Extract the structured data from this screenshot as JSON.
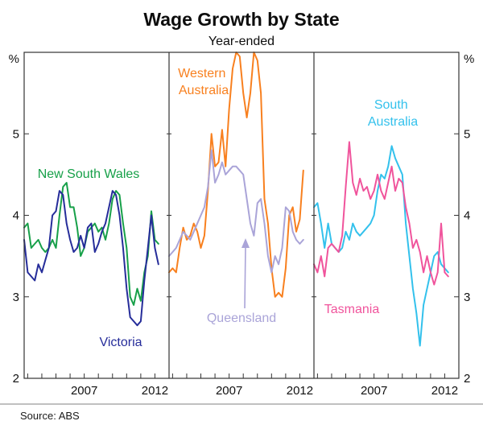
{
  "chart_data": {
    "type": "line",
    "title": "Wage Growth by State",
    "subtitle": "Year-ended",
    "unit": "%",
    "source": "Source: ABS",
    "ylim": [
      2,
      6
    ],
    "ytick_labels": [
      5,
      4,
      3,
      2
    ],
    "ytick_marks": [
      3,
      4,
      5
    ],
    "x_domain": [
      2002.75,
      2013.0
    ],
    "xticks": [
      2007,
      2012
    ],
    "grid": false,
    "legend": "in-panel colored text labels",
    "panels": [
      {
        "series": [
          {
            "name": "New South Wales",
            "label_lines": [
              "New South Wales"
            ],
            "color": "#17a049",
            "x_start": 2002.75,
            "x_step": 0.25,
            "values": [
              3.85,
              3.9,
              3.6,
              3.65,
              3.7,
              3.6,
              3.55,
              3.6,
              3.7,
              3.6,
              4.0,
              4.35,
              4.4,
              4.1,
              4.1,
              3.85,
              3.5,
              3.6,
              3.8,
              3.85,
              3.9,
              3.8,
              3.85,
              3.7,
              3.9,
              4.2,
              4.3,
              4.25,
              3.9,
              3.6,
              3.0,
              2.9,
              3.1,
              2.95,
              3.3,
              3.5,
              4.05,
              3.7,
              3.65
            ]
          },
          {
            "name": "Victoria",
            "label_lines": [
              "Victoria"
            ],
            "color": "#262d9a",
            "x_start": 2002.75,
            "x_step": 0.25,
            "values": [
              3.7,
              3.3,
              3.25,
              3.2,
              3.4,
              3.3,
              3.45,
              3.6,
              4.0,
              4.05,
              4.3,
              4.25,
              3.9,
              3.7,
              3.55,
              3.6,
              3.75,
              3.6,
              3.85,
              3.9,
              3.55,
              3.65,
              3.8,
              3.9,
              4.1,
              4.3,
              4.25,
              4.0,
              3.6,
              3.1,
              2.75,
              2.7,
              2.65,
              2.7,
              3.2,
              3.6,
              4.0,
              3.6,
              3.4
            ]
          }
        ]
      },
      {
        "series": [
          {
            "name": "Western Australia",
            "label_lines": [
              "Western",
              "Australia"
            ],
            "color": "#f8801f",
            "x_start": 2002.75,
            "x_step": 0.25,
            "values": [
              3.3,
              3.35,
              3.3,
              3.6,
              3.85,
              3.7,
              3.75,
              3.9,
              3.8,
              3.6,
              3.75,
              4.3,
              5.0,
              4.6,
              4.65,
              5.05,
              4.6,
              5.3,
              5.8,
              6.0,
              5.95,
              5.5,
              5.2,
              5.5,
              6.0,
              5.9,
              5.5,
              4.2,
              3.9,
              3.35,
              3.0,
              3.05,
              3.0,
              3.35,
              4.0,
              4.1,
              3.8,
              3.95,
              4.55
            ]
          },
          {
            "name": "Queensland",
            "label_lines": [
              "Queensland"
            ],
            "color": "#aaa4d8",
            "x_start": 2002.75,
            "x_step": 0.25,
            "values": [
              3.5,
              3.55,
              3.6,
              3.7,
              3.8,
              3.75,
              3.7,
              3.8,
              3.9,
              4.0,
              4.1,
              4.35,
              4.8,
              4.4,
              4.5,
              4.65,
              4.5,
              4.55,
              4.6,
              4.6,
              4.55,
              4.5,
              4.2,
              3.9,
              3.75,
              4.15,
              4.2,
              3.9,
              3.5,
              3.3,
              3.5,
              3.4,
              3.6,
              4.1,
              4.05,
              3.8,
              3.7,
              3.65,
              3.7
            ]
          }
        ]
      },
      {
        "series": [
          {
            "name": "South Australia",
            "label_lines": [
              "South",
              "Australia"
            ],
            "color": "#33c1ec",
            "x_start": 2002.75,
            "x_step": 0.25,
            "values": [
              4.1,
              4.15,
              3.9,
              3.6,
              3.9,
              3.65,
              3.6,
              3.55,
              3.6,
              3.8,
              3.7,
              3.9,
              3.8,
              3.75,
              3.8,
              3.85,
              3.9,
              4.0,
              4.3,
              4.5,
              4.45,
              4.6,
              4.85,
              4.7,
              4.6,
              4.5,
              3.9,
              3.5,
              3.1,
              2.8,
              2.4,
              2.9,
              3.1,
              3.3,
              3.5,
              3.55,
              3.4,
              3.35,
              3.3
            ]
          },
          {
            "name": "Tasmania",
            "label_lines": [
              "Tasmania"
            ],
            "color": "#f0549c",
            "x_start": 2002.75,
            "x_step": 0.25,
            "values": [
              3.4,
              3.3,
              3.5,
              3.25,
              3.6,
              3.65,
              3.6,
              3.55,
              3.75,
              4.35,
              4.9,
              4.4,
              4.25,
              4.45,
              4.3,
              4.35,
              4.2,
              4.3,
              4.5,
              4.3,
              4.2,
              4.4,
              4.6,
              4.3,
              4.45,
              4.4,
              4.1,
              3.9,
              3.6,
              3.7,
              3.55,
              3.3,
              3.5,
              3.3,
              3.15,
              3.3,
              3.9,
              3.3,
              3.25
            ]
          }
        ]
      }
    ]
  }
}
